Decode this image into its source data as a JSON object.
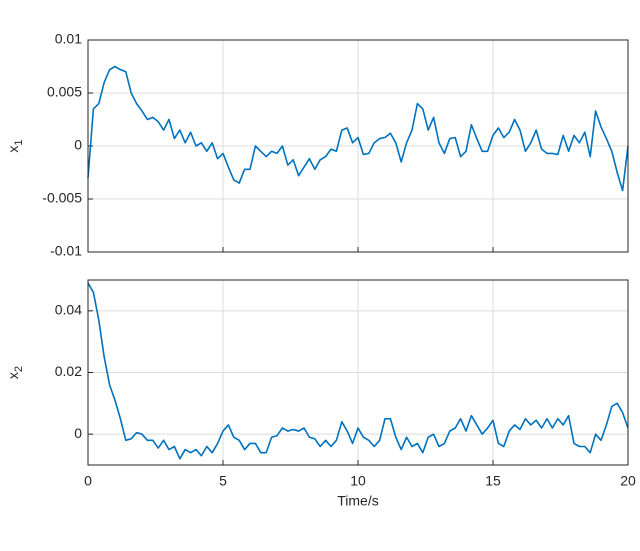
{
  "chart_data": [
    {
      "type": "line",
      "ylabel": "x",
      "ylabel_subscript": "1",
      "x": [
        0,
        0.2,
        0.4,
        0.6,
        0.8,
        1,
        1.2,
        1.4,
        1.6,
        1.8,
        2,
        2.2,
        2.4,
        2.6,
        2.8,
        3,
        3.2,
        3.4,
        3.6,
        3.8,
        4,
        4.2,
        4.4,
        4.6,
        4.8,
        5,
        5.2,
        5.4,
        5.6,
        5.8,
        6,
        6.2,
        6.4,
        6.6,
        6.8,
        7,
        7.2,
        7.4,
        7.6,
        7.8,
        8,
        8.2,
        8.4,
        8.6,
        8.8,
        9,
        9.2,
        9.4,
        9.6,
        9.8,
        10,
        10.2,
        10.4,
        10.6,
        10.8,
        11,
        11.2,
        11.4,
        11.6,
        11.8,
        12,
        12.2,
        12.4,
        12.6,
        12.8,
        13,
        13.2,
        13.4,
        13.6,
        13.8,
        14,
        14.2,
        14.4,
        14.6,
        14.8,
        15,
        15.2,
        15.4,
        15.6,
        15.8,
        16,
        16.2,
        16.4,
        16.6,
        16.8,
        17,
        17.2,
        17.4,
        17.6,
        17.8,
        18,
        18.2,
        18.4,
        18.6,
        18.8,
        19,
        19.2,
        19.4,
        19.6,
        19.8,
        20
      ],
      "series": [
        {
          "color": "#0072bd",
          "values": [
            -0.003,
            0.0035,
            0.004,
            0.006,
            0.0072,
            0.0075,
            0.0072,
            0.007,
            0.005,
            0.004,
            0.0033,
            0.0025,
            0.0027,
            0.0023,
            0.0015,
            0.0025,
            0.0007,
            0.0015,
            0.0003,
            0.0013,
            0,
            0.0003,
            -0.0005,
            0.0003,
            -0.0012,
            -0.0007,
            -0.002,
            -0.0032,
            -0.0035,
            -0.0022,
            -0.0022,
            0,
            -0.0005,
            -0.001,
            -0.0005,
            -0.0007,
            0,
            -0.0018,
            -0.0013,
            -0.0028,
            -0.002,
            -0.0012,
            -0.0022,
            -0.0013,
            -0.001,
            -0.0003,
            -0.0005,
            0.0015,
            0.0017,
            0.0003,
            0.0008,
            -0.0008,
            -0.0007,
            0.0003,
            0.0007,
            0.0008,
            0.0012,
            0.0003,
            -0.0015,
            0.0003,
            0.0015,
            0.004,
            0.0035,
            0.0015,
            0.0027,
            0.0003,
            -0.0007,
            0.0007,
            0.0008,
            -0.001,
            -0.0005,
            0.002,
            0.0007,
            -0.0005,
            -0.0005,
            0.001,
            0.0017,
            0.0008,
            0.0013,
            0.0025,
            0.0015,
            -0.0005,
            0.0003,
            0.0015,
            -0.0003,
            -0.0007,
            -0.0007,
            -0.0008,
            0.001,
            -0.0005,
            0.001,
            0.0003,
            0.0013,
            -0.001,
            0.0033,
            0.0018,
            0.0007,
            -0.0005,
            -0.0025,
            -0.0042,
            0
          ]
        }
      ],
      "xlim": [
        0,
        20
      ],
      "xticks": [
        0,
        5,
        10,
        15,
        20
      ],
      "show_xtick_labels": false,
      "ylim": [
        -0.01,
        0.01
      ],
      "yticks": [
        -0.01,
        -0.005,
        0,
        0.005,
        0.01
      ],
      "grid": true
    },
    {
      "type": "line",
      "ylabel": "x",
      "ylabel_subscript": "2",
      "xlabel": "Time/s",
      "x": [
        0,
        0.2,
        0.4,
        0.6,
        0.8,
        1,
        1.2,
        1.4,
        1.6,
        1.8,
        2,
        2.2,
        2.4,
        2.6,
        2.8,
        3,
        3.2,
        3.4,
        3.6,
        3.8,
        4,
        4.2,
        4.4,
        4.6,
        4.8,
        5,
        5.2,
        5.4,
        5.6,
        5.8,
        6,
        6.2,
        6.4,
        6.6,
        6.8,
        7,
        7.2,
        7.4,
        7.6,
        7.8,
        8,
        8.2,
        8.4,
        8.6,
        8.8,
        9,
        9.2,
        9.4,
        9.6,
        9.8,
        10,
        10.2,
        10.4,
        10.6,
        10.8,
        11,
        11.2,
        11.4,
        11.6,
        11.8,
        12,
        12.2,
        12.4,
        12.6,
        12.8,
        13,
        13.2,
        13.4,
        13.6,
        13.8,
        14,
        14.2,
        14.4,
        14.6,
        14.8,
        15,
        15.2,
        15.4,
        15.6,
        15.8,
        16,
        16.2,
        16.4,
        16.6,
        16.8,
        17,
        17.2,
        17.4,
        17.6,
        17.8,
        18,
        18.2,
        18.4,
        18.6,
        18.8,
        19,
        19.2,
        19.4,
        19.6,
        19.8,
        20
      ],
      "series": [
        {
          "color": "#0072bd",
          "values": [
            0.049,
            0.046,
            0.037,
            0.025,
            0.016,
            0.011,
            0.005,
            -0.002,
            -0.0015,
            0.0005,
            0,
            -0.002,
            -0.002,
            -0.0045,
            -0.002,
            -0.005,
            -0.004,
            -0.008,
            -0.005,
            -0.006,
            -0.005,
            -0.007,
            -0.004,
            -0.006,
            -0.003,
            0.001,
            0.003,
            -0.001,
            -0.002,
            -0.005,
            -0.003,
            -0.003,
            -0.006,
            -0.006,
            -0.001,
            -0.0005,
            0.002,
            0.001,
            0.0015,
            0.001,
            0.002,
            -0.001,
            -0.0015,
            -0.004,
            -0.002,
            -0.004,
            -0.002,
            0.004,
            0.001,
            -0.003,
            0.002,
            -0.001,
            -0.002,
            -0.004,
            -0.002,
            0.005,
            0.005,
            -0.001,
            -0.005,
            -0.001,
            -0.004,
            -0.003,
            -0.006,
            -0.001,
            0,
            -0.004,
            -0.003,
            0.001,
            0.002,
            0.005,
            0.001,
            0.006,
            0.003,
            0,
            0.002,
            0.0045,
            -0.003,
            -0.004,
            0.001,
            0.003,
            0.0015,
            0.005,
            0.003,
            0.0045,
            0.002,
            0.005,
            0.002,
            0.005,
            0.003,
            0.006,
            -0.003,
            -0.004,
            -0.004,
            -0.006,
            0,
            -0.002,
            0.003,
            0.009,
            0.01,
            0.007,
            0.002
          ]
        }
      ],
      "xlim": [
        0,
        20
      ],
      "xticks": [
        0,
        5,
        10,
        15,
        20
      ],
      "show_xtick_labels": true,
      "ylim": [
        -0.01,
        0.05
      ],
      "yticks": [
        0,
        0.02,
        0.04
      ],
      "grid": true
    }
  ]
}
